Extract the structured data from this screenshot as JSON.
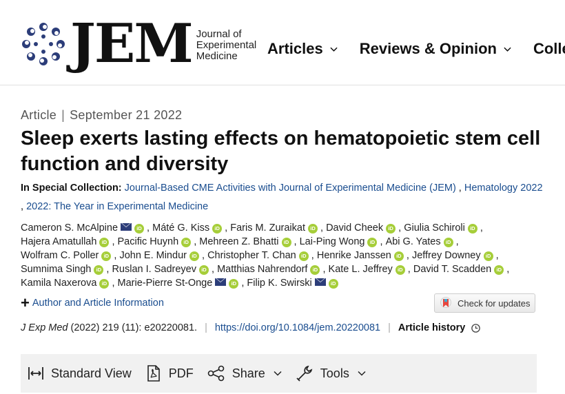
{
  "header": {
    "logo_text": "JEM",
    "journal_name_line1": "Journal of",
    "journal_name_line2": "Experimental",
    "journal_name_line3": "Medicine",
    "nav": [
      {
        "label": "Articles"
      },
      {
        "label": "Reviews & Opinion"
      },
      {
        "label": "Colle"
      }
    ]
  },
  "article": {
    "type": "Article",
    "separator": "|",
    "date": "September 21 2022",
    "title": "Sleep exerts lasting effects on hematopoietic stem cell function and diversity",
    "collection_label": "In Special Collection:",
    "collections": [
      "Journal-Based CME Activities with Journal of Experimental Medicine (JEM)",
      "Hematology 2022",
      "2022: The Year in Experimental Medicine"
    ],
    "authors": [
      {
        "name": "Cameron S. McAlpine",
        "email": true
      },
      {
        "name": "Máté G. Kiss",
        "email": false
      },
      {
        "name": "Faris M. Zuraikat",
        "email": false
      },
      {
        "name": "David Cheek",
        "email": false
      },
      {
        "name": "Giulia Schiroli",
        "email": false
      },
      {
        "name": "Hajera Amatullah",
        "email": false
      },
      {
        "name": "Pacific Huynh",
        "email": false
      },
      {
        "name": "Mehreen Z. Bhatti",
        "email": false
      },
      {
        "name": "Lai-Ping Wong",
        "email": false
      },
      {
        "name": "Abi G. Yates",
        "email": false
      },
      {
        "name": "Wolfram C. Poller",
        "email": false
      },
      {
        "name": "John E. Mindur",
        "email": false
      },
      {
        "name": "Christopher T. Chan",
        "email": false
      },
      {
        "name": "Henrike Janssen",
        "email": false
      },
      {
        "name": "Jeffrey Downey",
        "email": false
      },
      {
        "name": "Sumnima Singh",
        "email": false
      },
      {
        "name": "Ruslan I. Sadreyev",
        "email": false
      },
      {
        "name": "Matthias Nahrendorf",
        "email": false
      },
      {
        "name": "Kate L. Jeffrey",
        "email": false
      },
      {
        "name": "David T. Scadden",
        "email": false
      },
      {
        "name": "Kamila Naxerova",
        "email": false
      },
      {
        "name": "Marie-Pierre St-Onge",
        "email": true
      },
      {
        "name": "Filip K. Swirski",
        "email": true
      }
    ],
    "orcid_label": "iD",
    "author_info_label": "Author and Article Information",
    "check_updates_label": "Check for updates",
    "citation_journal": "J Exp Med",
    "citation_rest": "(2022) 219 (11): e20220081.",
    "citation_bar": "|",
    "doi": "https://doi.org/10.1084/jem.20220081",
    "history_label": "Article history"
  },
  "toolbar": {
    "standard_view": "Standard View",
    "pdf": "PDF",
    "share": "Share",
    "tools": "Tools"
  },
  "colors": {
    "link": "#1a4d8f",
    "orcid": "#a6ce39",
    "logo_blue": "#2c3d79",
    "toolbar_bg": "#f1f1f1"
  }
}
